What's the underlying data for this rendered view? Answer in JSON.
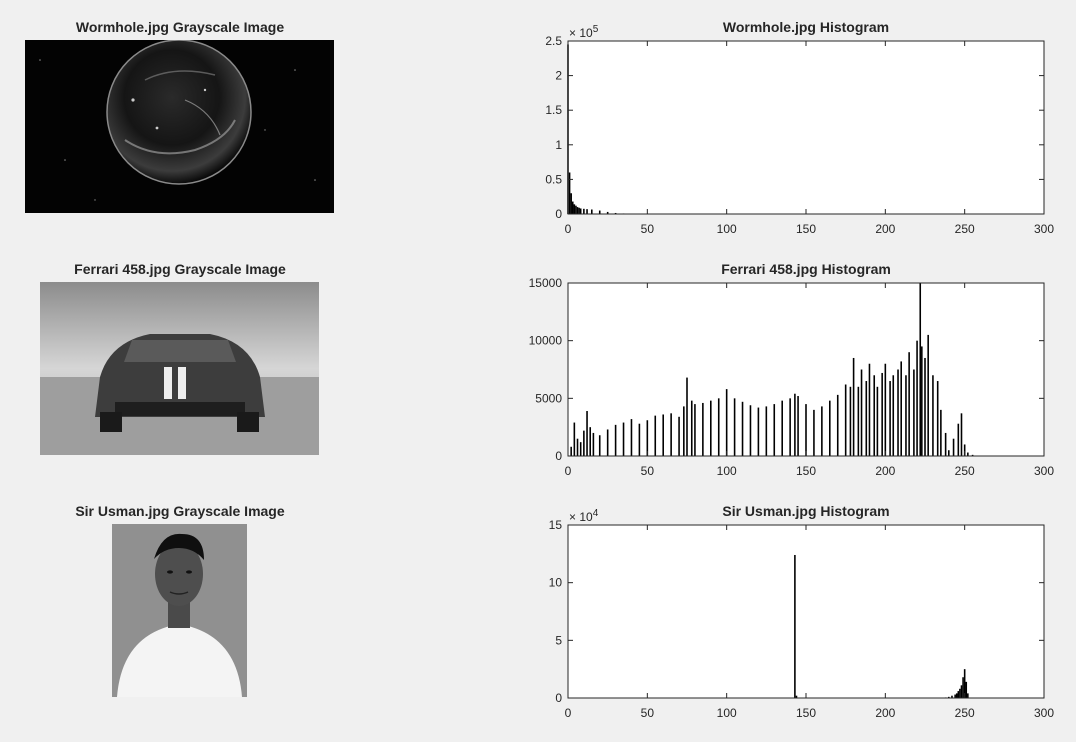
{
  "images": [
    {
      "title": "Wormhole.jpg Grayscale Image"
    },
    {
      "title": "Ferrari 458.jpg Grayscale Image"
    },
    {
      "title": "Sir Usman.jpg Grayscale Image"
    }
  ],
  "chart_data": [
    {
      "type": "bar",
      "title": "Wormhole.jpg Histogram",
      "xlabel": "",
      "ylabel": "",
      "xlim": [
        0,
        300
      ],
      "ylim": [
        0,
        250000
      ],
      "xticks": [
        0,
        50,
        100,
        150,
        200,
        250,
        300
      ],
      "yticks": [
        0,
        50000,
        100000,
        150000,
        200000,
        250000
      ],
      "ytick_labels": [
        "0",
        "0.5",
        "1",
        "1.5",
        "2",
        "2.5"
      ],
      "exponent_label": "× 10^5",
      "x": [
        0,
        1,
        2,
        3,
        4,
        5,
        6,
        7,
        8,
        10,
        12,
        15,
        20,
        25,
        30,
        35,
        40
      ],
      "values": [
        245000,
        60000,
        30000,
        18000,
        14000,
        12000,
        10000,
        9000,
        8000,
        7500,
        7000,
        6500,
        5000,
        3000,
        1500,
        800,
        300
      ]
    },
    {
      "type": "bar",
      "title": "Ferrari 458.jpg Histogram",
      "xlabel": "",
      "ylabel": "",
      "xlim": [
        0,
        300
      ],
      "ylim": [
        0,
        15000
      ],
      "xticks": [
        0,
        50,
        100,
        150,
        200,
        250,
        300
      ],
      "yticks": [
        0,
        5000,
        10000,
        15000
      ],
      "ytick_labels": [
        "0",
        "5000",
        "10000",
        "15000"
      ],
      "x": [
        2,
        4,
        6,
        8,
        10,
        12,
        14,
        16,
        20,
        25,
        30,
        35,
        40,
        45,
        50,
        55,
        60,
        65,
        70,
        73,
        75,
        78,
        80,
        85,
        90,
        95,
        100,
        105,
        110,
        115,
        120,
        125,
        130,
        135,
        140,
        143,
        145,
        150,
        155,
        160,
        165,
        170,
        175,
        178,
        180,
        183,
        185,
        188,
        190,
        193,
        195,
        198,
        200,
        203,
        205,
        208,
        210,
        213,
        215,
        218,
        220,
        222,
        223,
        225,
        227,
        230,
        233,
        235,
        238,
        240,
        243,
        246,
        248,
        250,
        252,
        255
      ],
      "values": [
        800,
        2900,
        1500,
        1200,
        2200,
        3900,
        2500,
        2000,
        1800,
        2300,
        2700,
        2900,
        3200,
        2800,
        3100,
        3500,
        3600,
        3700,
        3400,
        4300,
        6800,
        4800,
        4500,
        4600,
        4800,
        5000,
        5800,
        5000,
        4700,
        4400,
        4200,
        4300,
        4500,
        4800,
        5000,
        5400,
        5200,
        4500,
        4000,
        4300,
        4800,
        5300,
        6200,
        6000,
        8500,
        6000,
        7500,
        6500,
        8000,
        7000,
        6000,
        7200,
        8000,
        6500,
        7000,
        7500,
        8200,
        7000,
        9000,
        7500,
        10000,
        15000,
        9500,
        8500,
        10500,
        7000,
        6500,
        4000,
        2000,
        500,
        1500,
        2800,
        3700,
        1000,
        300,
        100
      ]
    },
    {
      "type": "bar",
      "title": "Sir Usman.jpg Histogram",
      "xlabel": "",
      "ylabel": "",
      "xlim": [
        0,
        300
      ],
      "ylim": [
        0,
        150000
      ],
      "xticks": [
        0,
        50,
        100,
        150,
        200,
        250,
        300
      ],
      "yticks": [
        0,
        50000,
        100000,
        150000
      ],
      "ytick_labels": [
        "0",
        "5",
        "10",
        "15"
      ],
      "exponent_label": "× 10^4",
      "x": [
        143,
        144,
        238,
        240,
        242,
        244,
        245,
        246,
        247,
        248,
        249,
        250,
        251,
        252
      ],
      "values": [
        124000,
        2000,
        500,
        1000,
        2000,
        3000,
        4000,
        6000,
        8000,
        11000,
        18000,
        25000,
        14000,
        4000
      ]
    }
  ]
}
